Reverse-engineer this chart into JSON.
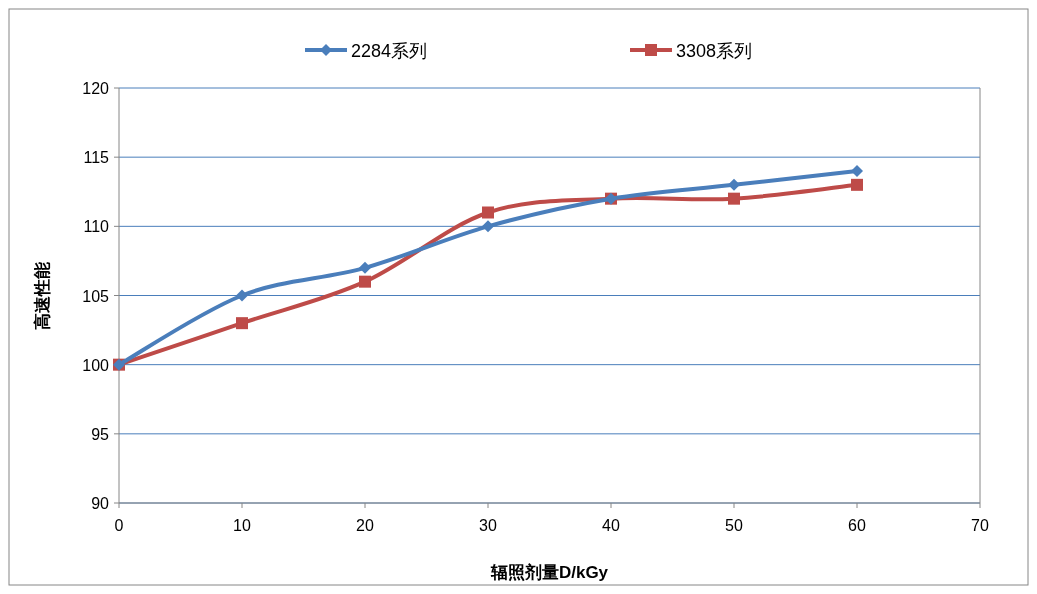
{
  "chart_data": {
    "type": "line",
    "xlabel": "辐照剂量D/kGy",
    "ylabel": "高速性能",
    "x": [
      0,
      10,
      20,
      30,
      40,
      50,
      60
    ],
    "series": [
      {
        "name": "2284系列",
        "color": "#4a7ebb",
        "marker": "diamond",
        "values": [
          100,
          105,
          107,
          110,
          112,
          113,
          114
        ]
      },
      {
        "name": "3308系列",
        "color": "#be4b48",
        "marker": "square",
        "values": [
          100,
          103,
          106,
          111,
          112,
          112,
          113
        ]
      }
    ],
    "xlim": [
      0,
      70
    ],
    "xticks": [
      0,
      10,
      20,
      30,
      40,
      50,
      60,
      70
    ],
    "ylim": [
      90,
      120
    ],
    "yticks": [
      90,
      95,
      100,
      105,
      110,
      115,
      120
    ],
    "grid": "y",
    "legend": "top"
  }
}
